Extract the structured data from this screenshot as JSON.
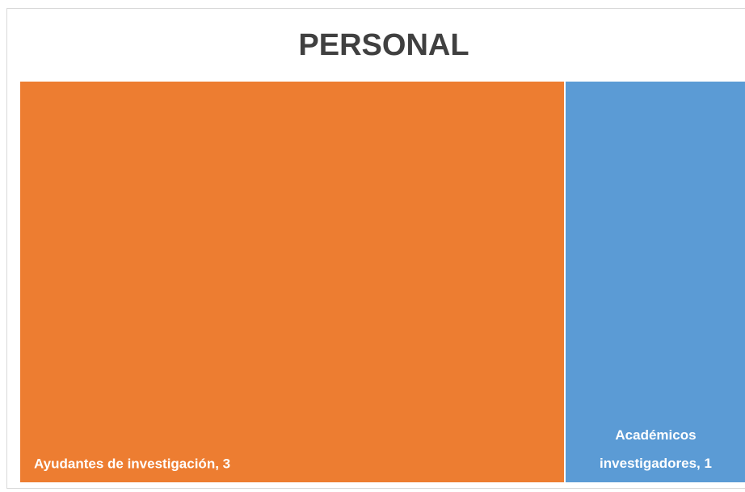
{
  "chart_data": {
    "type": "treemap",
    "title": "PERSONAL",
    "values": [
      3,
      1
    ],
    "value_labels": [
      "Ayudantes de investigación, 3",
      "Académicos investigadores, 1"
    ],
    "colors": [
      "#ED7D31",
      "#5B9BD5"
    ]
  }
}
